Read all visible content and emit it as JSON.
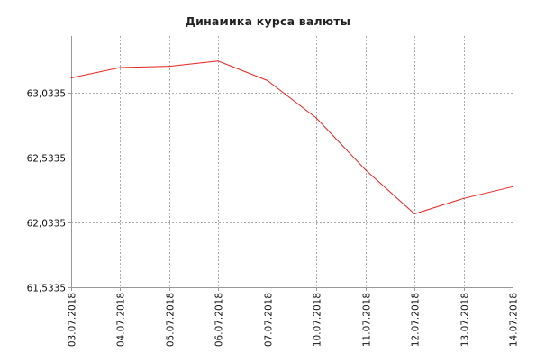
{
  "chart_data": {
    "type": "line",
    "title": "Динамика курса валюты",
    "xlabel": "",
    "ylabel": "",
    "categories": [
      "03.07.2018",
      "04.07.2018",
      "05.07.2018",
      "06.07.2018",
      "07.07.2018",
      "10.07.2018",
      "11.07.2018",
      "12.07.2018",
      "13.07.2018",
      "14.07.2018"
    ],
    "series": [
      {
        "values": [
          63.15,
          63.23,
          63.24,
          63.28,
          63.13,
          62.84,
          62.44,
          62.1,
          62.22,
          62.31
        ]
      }
    ],
    "yticks": [
      61.5335,
      62.0335,
      62.5335,
      63.0335
    ],
    "ytick_labels": [
      "61,5335",
      "62,0335",
      "62,5335",
      "63,0335"
    ],
    "ylim": [
      61.5335,
      63.4735
    ],
    "grid": true,
    "line_color": "#e8231f",
    "grid_color": "#aaaaaa",
    "axis_color": "#999999"
  }
}
